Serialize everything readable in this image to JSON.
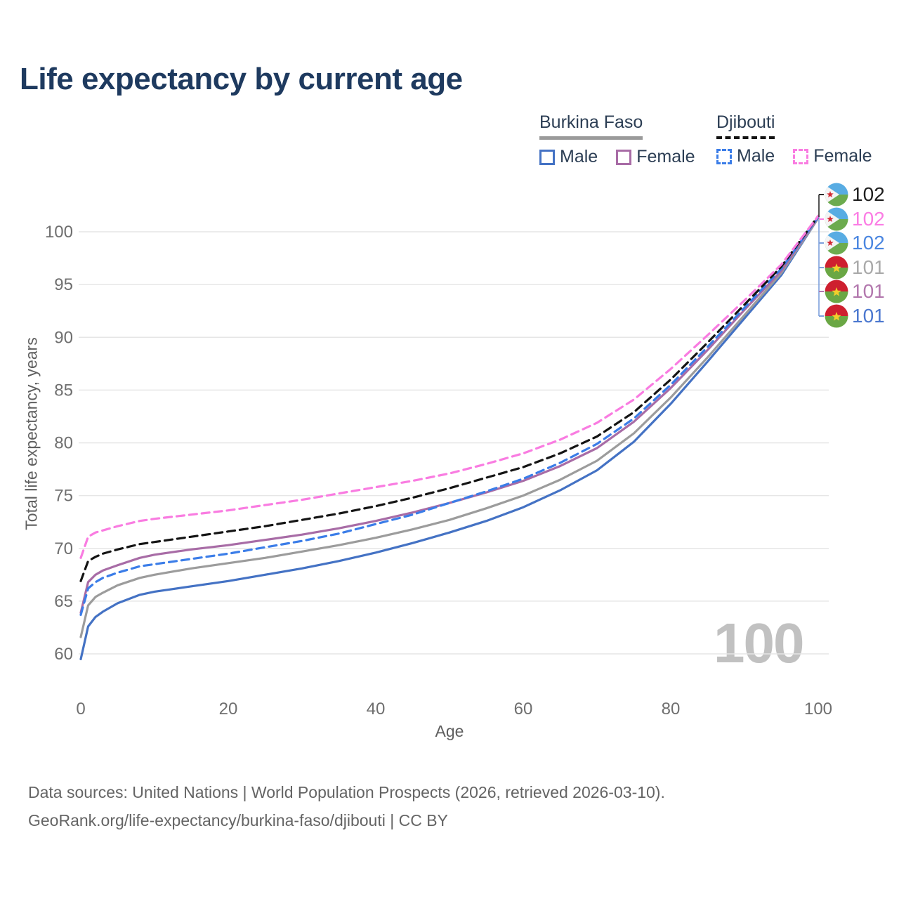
{
  "title": "Life expectancy by current age",
  "watermark": "100",
  "legend": {
    "groups": [
      {
        "label": "Burkina Faso",
        "underline_style": "solid",
        "underline_color": "#9a9a9a",
        "items": [
          {
            "label": "Male",
            "color": "#4472c4",
            "dashed": false
          },
          {
            "label": "Female",
            "color": "#a86ca6",
            "dashed": false
          }
        ]
      },
      {
        "label": "Djibouti",
        "underline_style": "dashed",
        "underline_color": "#141414",
        "items": [
          {
            "label": "Male",
            "color": "#3b7de8",
            "dashed": true
          },
          {
            "label": "Female",
            "color": "#f97ce1",
            "dashed": true
          }
        ]
      }
    ]
  },
  "axes": {
    "x_label": "Age",
    "y_label": "Total life expectancy, years"
  },
  "end_labels": [
    {
      "value": "102",
      "color": "#1f1f1f",
      "flag": "djibouti-flag-icon",
      "leader_color": "#2a2a2a"
    },
    {
      "value": "102",
      "color": "#fb7ce4",
      "flag": "djibouti-flag-icon",
      "leader_color": "#fb7ce4"
    },
    {
      "value": "102",
      "color": "#4a86e0",
      "flag": "djibouti-flag-icon",
      "leader_color": "#7da0dc"
    },
    {
      "value": "101",
      "color": "#a9a9a9",
      "flag": "burkina-faso-flag-icon",
      "leader_color": "#7da0dc"
    },
    {
      "value": "101",
      "color": "#b277ad",
      "flag": "burkina-faso-flag-icon",
      "leader_color": "#b277ad"
    },
    {
      "value": "101",
      "color": "#4a77cf",
      "flag": "burkina-faso-flag-icon",
      "leader_color": "#7da0dc"
    }
  ],
  "footer": {
    "line1": "Data sources: United Nations | World Population Prospects (2026, retrieved 2026-03-10).",
    "line2": "GeoRank.org/life-expectancy/burkina-faso/djibouti | CC BY"
  },
  "chart_data": {
    "type": "line",
    "title": "Life expectancy by current age",
    "xlabel": "Age",
    "ylabel": "Total life expectancy, years",
    "xlim": [
      0,
      100
    ],
    "ylim": [
      58,
      103
    ],
    "xticks": [
      0,
      20,
      40,
      60,
      80,
      100
    ],
    "yticks": [
      60,
      65,
      70,
      75,
      80,
      85,
      90,
      95,
      100
    ],
    "grid": "horizontal",
    "legend_position": "top-right",
    "series": [
      {
        "name": "Djibouti Female",
        "country": "Djibouti",
        "sex": "Female",
        "color": "#f97ce1",
        "dashed": true,
        "end_value_label": "102",
        "points": [
          [
            0,
            69.1
          ],
          [
            1,
            71.1
          ],
          [
            2,
            71.5
          ],
          [
            3,
            71.7
          ],
          [
            5,
            72.1
          ],
          [
            8,
            72.6
          ],
          [
            10,
            72.8
          ],
          [
            15,
            73.2
          ],
          [
            20,
            73.6
          ],
          [
            25,
            74.1
          ],
          [
            30,
            74.6
          ],
          [
            35,
            75.2
          ],
          [
            40,
            75.8
          ],
          [
            45,
            76.4
          ],
          [
            50,
            77.1
          ],
          [
            55,
            78.0
          ],
          [
            60,
            79.0
          ],
          [
            65,
            80.3
          ],
          [
            70,
            81.9
          ],
          [
            75,
            84.1
          ],
          [
            80,
            87.0
          ],
          [
            85,
            90.2
          ],
          [
            90,
            93.5
          ],
          [
            95,
            96.9
          ],
          [
            100,
            101.5
          ]
        ]
      },
      {
        "name": "Djibouti All",
        "country": "Djibouti",
        "sex": "All",
        "color": "#141414",
        "dashed": true,
        "end_value_label": "102",
        "points": [
          [
            0,
            66.9
          ],
          [
            1,
            68.8
          ],
          [
            2,
            69.2
          ],
          [
            3,
            69.5
          ],
          [
            5,
            69.9
          ],
          [
            8,
            70.4
          ],
          [
            10,
            70.6
          ],
          [
            15,
            71.1
          ],
          [
            20,
            71.6
          ],
          [
            25,
            72.1
          ],
          [
            30,
            72.7
          ],
          [
            35,
            73.3
          ],
          [
            40,
            74.0
          ],
          [
            45,
            74.8
          ],
          [
            50,
            75.7
          ],
          [
            55,
            76.7
          ],
          [
            60,
            77.7
          ],
          [
            65,
            79.0
          ],
          [
            70,
            80.6
          ],
          [
            75,
            82.9
          ],
          [
            80,
            86.0
          ],
          [
            85,
            89.5
          ],
          [
            90,
            93.1
          ],
          [
            95,
            96.7
          ],
          [
            100,
            101.5
          ]
        ]
      },
      {
        "name": "Djibouti Male",
        "country": "Djibouti",
        "sex": "Male",
        "color": "#3b7de8",
        "dashed": true,
        "end_value_label": "102",
        "points": [
          [
            0,
            63.7
          ],
          [
            1,
            66.2
          ],
          [
            2,
            66.8
          ],
          [
            3,
            67.2
          ],
          [
            5,
            67.7
          ],
          [
            8,
            68.3
          ],
          [
            10,
            68.5
          ],
          [
            15,
            69.0
          ],
          [
            20,
            69.5
          ],
          [
            25,
            70.1
          ],
          [
            30,
            70.7
          ],
          [
            35,
            71.4
          ],
          [
            40,
            72.3
          ],
          [
            45,
            73.2
          ],
          [
            50,
            74.3
          ],
          [
            55,
            75.4
          ],
          [
            60,
            76.6
          ],
          [
            65,
            78.1
          ],
          [
            70,
            79.9
          ],
          [
            75,
            82.3
          ],
          [
            80,
            85.5
          ],
          [
            85,
            89.1
          ],
          [
            90,
            92.8
          ],
          [
            95,
            96.5
          ],
          [
            100,
            101.4
          ]
        ]
      },
      {
        "name": "Burkina Faso Female",
        "country": "Burkina Faso",
        "sex": "Female",
        "color": "#a86ca6",
        "dashed": false,
        "end_value_label": "101",
        "points": [
          [
            0,
            63.9
          ],
          [
            1,
            66.8
          ],
          [
            2,
            67.5
          ],
          [
            3,
            67.9
          ],
          [
            5,
            68.4
          ],
          [
            8,
            69.1
          ],
          [
            10,
            69.4
          ],
          [
            15,
            69.9
          ],
          [
            20,
            70.3
          ],
          [
            25,
            70.8
          ],
          [
            30,
            71.3
          ],
          [
            35,
            71.9
          ],
          [
            40,
            72.6
          ],
          [
            45,
            73.4
          ],
          [
            50,
            74.3
          ],
          [
            55,
            75.3
          ],
          [
            60,
            76.4
          ],
          [
            65,
            77.8
          ],
          [
            70,
            79.5
          ],
          [
            75,
            82.0
          ],
          [
            80,
            85.2
          ],
          [
            85,
            88.8
          ],
          [
            90,
            92.6
          ],
          [
            95,
            96.3
          ],
          [
            100,
            101.4
          ]
        ]
      },
      {
        "name": "Burkina Faso All",
        "country": "Burkina Faso",
        "sex": "All",
        "color": "#9c9c9c",
        "dashed": false,
        "end_value_label": "101",
        "points": [
          [
            0,
            61.6
          ],
          [
            1,
            64.6
          ],
          [
            2,
            65.4
          ],
          [
            3,
            65.8
          ],
          [
            5,
            66.5
          ],
          [
            8,
            67.2
          ],
          [
            10,
            67.5
          ],
          [
            15,
            68.1
          ],
          [
            20,
            68.6
          ],
          [
            25,
            69.1
          ],
          [
            30,
            69.7
          ],
          [
            35,
            70.3
          ],
          [
            40,
            71.0
          ],
          [
            45,
            71.8
          ],
          [
            50,
            72.7
          ],
          [
            55,
            73.8
          ],
          [
            60,
            75.0
          ],
          [
            65,
            76.5
          ],
          [
            70,
            78.3
          ],
          [
            75,
            80.9
          ],
          [
            80,
            84.3
          ],
          [
            85,
            88.1
          ],
          [
            90,
            92.1
          ],
          [
            95,
            96.1
          ],
          [
            100,
            101.3
          ]
        ]
      },
      {
        "name": "Burkina Faso Male",
        "country": "Burkina Faso",
        "sex": "Male",
        "color": "#4472c4",
        "dashed": false,
        "end_value_label": "101",
        "points": [
          [
            0,
            59.5
          ],
          [
            1,
            62.6
          ],
          [
            2,
            63.5
          ],
          [
            3,
            64.0
          ],
          [
            5,
            64.8
          ],
          [
            8,
            65.6
          ],
          [
            10,
            65.9
          ],
          [
            15,
            66.4
          ],
          [
            20,
            66.9
          ],
          [
            25,
            67.5
          ],
          [
            30,
            68.1
          ],
          [
            35,
            68.8
          ],
          [
            40,
            69.6
          ],
          [
            45,
            70.5
          ],
          [
            50,
            71.5
          ],
          [
            55,
            72.6
          ],
          [
            60,
            73.9
          ],
          [
            65,
            75.5
          ],
          [
            70,
            77.4
          ],
          [
            75,
            80.1
          ],
          [
            80,
            83.7
          ],
          [
            85,
            87.7
          ],
          [
            90,
            91.8
          ],
          [
            95,
            95.9
          ],
          [
            100,
            101.3
          ]
        ]
      }
    ]
  }
}
